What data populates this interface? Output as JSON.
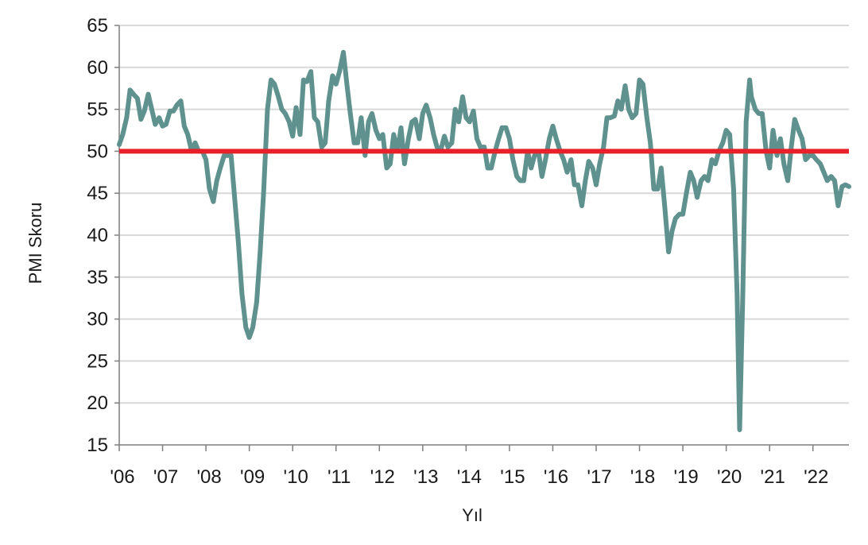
{
  "chart_data": {
    "type": "line",
    "title": "",
    "xlabel": "Yıl",
    "ylabel": "PMI Skoru",
    "ylim": [
      15,
      65
    ],
    "yticks": [
      15,
      20,
      25,
      30,
      35,
      40,
      45,
      50,
      55,
      60,
      65
    ],
    "xlim": [
      2006.0,
      2022.83
    ],
    "xticks": [
      {
        "value": 2006,
        "label": "'06"
      },
      {
        "value": 2007,
        "label": "'07"
      },
      {
        "value": 2008,
        "label": "'08"
      },
      {
        "value": 2009,
        "label": "'09"
      },
      {
        "value": 2010,
        "label": "'10"
      },
      {
        "value": 2011,
        "label": "'11"
      },
      {
        "value": 2012,
        "label": "'12"
      },
      {
        "value": 2013,
        "label": "'13"
      },
      {
        "value": 2014,
        "label": "'14"
      },
      {
        "value": 2015,
        "label": "'15"
      },
      {
        "value": 2016,
        "label": "'16"
      },
      {
        "value": 2017,
        "label": "'17"
      },
      {
        "value": 2018,
        "label": "'18"
      },
      {
        "value": 2019,
        "label": "'19"
      },
      {
        "value": 2020,
        "label": "'20"
      },
      {
        "value": 2021,
        "label": "'21"
      },
      {
        "value": 2022,
        "label": "'22"
      }
    ],
    "grid": true,
    "legend": false,
    "reference_line": {
      "value": 50,
      "color": "#e8202a"
    },
    "series": [
      {
        "color": "#5f928e",
        "points": [
          [
            2006.0,
            50.8
          ],
          [
            2006.08,
            52.0
          ],
          [
            2006.17,
            54.0
          ],
          [
            2006.25,
            57.3
          ],
          [
            2006.33,
            56.8
          ],
          [
            2006.42,
            56.3
          ],
          [
            2006.5,
            53.8
          ],
          [
            2006.58,
            54.8
          ],
          [
            2006.67,
            56.8
          ],
          [
            2006.75,
            55.0
          ],
          [
            2006.83,
            53.2
          ],
          [
            2006.92,
            54.0
          ],
          [
            2007.0,
            53.0
          ],
          [
            2007.08,
            53.2
          ],
          [
            2007.17,
            54.8
          ],
          [
            2007.25,
            54.8
          ],
          [
            2007.33,
            55.5
          ],
          [
            2007.42,
            56.0
          ],
          [
            2007.5,
            53.0
          ],
          [
            2007.58,
            52.0
          ],
          [
            2007.67,
            50.0
          ],
          [
            2007.75,
            51.0
          ],
          [
            2007.83,
            50.0
          ],
          [
            2007.92,
            50.0
          ],
          [
            2008.0,
            49.0
          ],
          [
            2008.08,
            45.5
          ],
          [
            2008.17,
            44.0
          ],
          [
            2008.25,
            46.5
          ],
          [
            2008.33,
            48.0
          ],
          [
            2008.42,
            49.5
          ],
          [
            2008.5,
            49.5
          ],
          [
            2008.58,
            49.5
          ],
          [
            2008.67,
            44.0
          ],
          [
            2008.75,
            39.0
          ],
          [
            2008.83,
            33.0
          ],
          [
            2008.92,
            29.0
          ],
          [
            2009.0,
            27.8
          ],
          [
            2009.08,
            29.0
          ],
          [
            2009.17,
            32.0
          ],
          [
            2009.25,
            38.0
          ],
          [
            2009.33,
            45.0
          ],
          [
            2009.42,
            55.0
          ],
          [
            2009.5,
            58.5
          ],
          [
            2009.58,
            58.0
          ],
          [
            2009.67,
            56.5
          ],
          [
            2009.75,
            55.0
          ],
          [
            2009.83,
            54.5
          ],
          [
            2009.92,
            53.5
          ],
          [
            2010.0,
            51.8
          ],
          [
            2010.08,
            55.2
          ],
          [
            2010.17,
            52.0
          ],
          [
            2010.25,
            58.5
          ],
          [
            2010.33,
            58.3
          ],
          [
            2010.42,
            59.5
          ],
          [
            2010.5,
            54.0
          ],
          [
            2010.58,
            53.5
          ],
          [
            2010.67,
            50.5
          ],
          [
            2010.75,
            51.0
          ],
          [
            2010.83,
            56.0
          ],
          [
            2010.92,
            59.0
          ],
          [
            2011.0,
            58.0
          ],
          [
            2011.08,
            59.5
          ],
          [
            2011.17,
            61.8
          ],
          [
            2011.25,
            58.0
          ],
          [
            2011.33,
            54.5
          ],
          [
            2011.42,
            51.0
          ],
          [
            2011.5,
            51.0
          ],
          [
            2011.58,
            54.0
          ],
          [
            2011.67,
            49.5
          ],
          [
            2011.75,
            53.5
          ],
          [
            2011.83,
            54.5
          ],
          [
            2011.92,
            52.5
          ],
          [
            2012.0,
            51.5
          ],
          [
            2012.08,
            52.0
          ],
          [
            2012.17,
            48.0
          ],
          [
            2012.25,
            48.5
          ],
          [
            2012.33,
            52.0
          ],
          [
            2012.42,
            50.0
          ],
          [
            2012.5,
            52.8
          ],
          [
            2012.58,
            48.5
          ],
          [
            2012.67,
            51.5
          ],
          [
            2012.75,
            53.5
          ],
          [
            2012.83,
            53.8
          ],
          [
            2012.92,
            51.5
          ],
          [
            2013.0,
            54.5
          ],
          [
            2013.08,
            55.5
          ],
          [
            2013.17,
            54.0
          ],
          [
            2013.25,
            52.0
          ],
          [
            2013.33,
            50.5
          ],
          [
            2013.42,
            50.2
          ],
          [
            2013.5,
            51.8
          ],
          [
            2013.58,
            50.5
          ],
          [
            2013.67,
            51.0
          ],
          [
            2013.75,
            55.0
          ],
          [
            2013.83,
            53.5
          ],
          [
            2013.92,
            56.5
          ],
          [
            2014.0,
            54.0
          ],
          [
            2014.08,
            53.5
          ],
          [
            2014.17,
            54.8
          ],
          [
            2014.25,
            51.5
          ],
          [
            2014.33,
            50.5
          ],
          [
            2014.42,
            50.5
          ],
          [
            2014.5,
            48.0
          ],
          [
            2014.58,
            48.0
          ],
          [
            2014.67,
            50.0
          ],
          [
            2014.75,
            51.5
          ],
          [
            2014.83,
            52.8
          ],
          [
            2014.92,
            52.8
          ],
          [
            2015.0,
            51.5
          ],
          [
            2015.08,
            49.0
          ],
          [
            2015.17,
            47.0
          ],
          [
            2015.25,
            46.5
          ],
          [
            2015.33,
            46.5
          ],
          [
            2015.42,
            50.0
          ],
          [
            2015.5,
            48.0
          ],
          [
            2015.58,
            49.5
          ],
          [
            2015.67,
            50.0
          ],
          [
            2015.75,
            47.0
          ],
          [
            2015.83,
            49.0
          ],
          [
            2015.92,
            51.5
          ],
          [
            2016.0,
            53.0
          ],
          [
            2016.08,
            51.5
          ],
          [
            2016.17,
            50.0
          ],
          [
            2016.25,
            49.0
          ],
          [
            2016.33,
            47.5
          ],
          [
            2016.42,
            49.0
          ],
          [
            2016.5,
            46.0
          ],
          [
            2016.58,
            46.0
          ],
          [
            2016.67,
            43.5
          ],
          [
            2016.75,
            46.5
          ],
          [
            2016.83,
            48.8
          ],
          [
            2016.92,
            48.0
          ],
          [
            2017.0,
            46.0
          ],
          [
            2017.08,
            48.5
          ],
          [
            2017.17,
            50.5
          ],
          [
            2017.25,
            54.0
          ],
          [
            2017.33,
            54.0
          ],
          [
            2017.42,
            54.2
          ],
          [
            2017.5,
            56.0
          ],
          [
            2017.58,
            55.0
          ],
          [
            2017.67,
            57.8
          ],
          [
            2017.75,
            55.0
          ],
          [
            2017.83,
            54.0
          ],
          [
            2017.92,
            54.5
          ],
          [
            2018.0,
            58.5
          ],
          [
            2018.08,
            58.0
          ],
          [
            2018.17,
            54.0
          ],
          [
            2018.25,
            51.0
          ],
          [
            2018.33,
            45.5
          ],
          [
            2018.42,
            45.5
          ],
          [
            2018.5,
            48.0
          ],
          [
            2018.58,
            43.5
          ],
          [
            2018.67,
            38.0
          ],
          [
            2018.75,
            40.5
          ],
          [
            2018.83,
            42.0
          ],
          [
            2018.92,
            42.5
          ],
          [
            2019.0,
            42.5
          ],
          [
            2019.08,
            45.0
          ],
          [
            2019.17,
            47.5
          ],
          [
            2019.25,
            46.5
          ],
          [
            2019.33,
            44.5
          ],
          [
            2019.42,
            46.5
          ],
          [
            2019.5,
            47.0
          ],
          [
            2019.58,
            46.5
          ],
          [
            2019.67,
            49.0
          ],
          [
            2019.75,
            48.5
          ],
          [
            2019.83,
            50.0
          ],
          [
            2019.92,
            51.0
          ],
          [
            2020.0,
            52.5
          ],
          [
            2020.08,
            52.0
          ],
          [
            2020.17,
            45.5
          ],
          [
            2020.25,
            33.0
          ],
          [
            2020.31,
            16.8
          ],
          [
            2020.38,
            32.5
          ],
          [
            2020.46,
            53.5
          ],
          [
            2020.54,
            58.5
          ],
          [
            2020.58,
            56.5
          ],
          [
            2020.67,
            55.0
          ],
          [
            2020.75,
            54.5
          ],
          [
            2020.83,
            54.5
          ],
          [
            2020.92,
            50.0
          ],
          [
            2021.0,
            48.0
          ],
          [
            2021.08,
            52.5
          ],
          [
            2021.17,
            49.5
          ],
          [
            2021.25,
            51.5
          ],
          [
            2021.33,
            48.5
          ],
          [
            2021.42,
            46.5
          ],
          [
            2021.5,
            50.5
          ],
          [
            2021.58,
            53.8
          ],
          [
            2021.67,
            52.5
          ],
          [
            2021.75,
            51.5
          ],
          [
            2021.83,
            49.0
          ],
          [
            2021.92,
            49.5
          ],
          [
            2022.0,
            49.5
          ],
          [
            2022.08,
            49.0
          ],
          [
            2022.17,
            48.5
          ],
          [
            2022.25,
            47.5
          ],
          [
            2022.33,
            46.5
          ],
          [
            2022.42,
            47.0
          ],
          [
            2022.5,
            46.5
          ],
          [
            2022.58,
            43.5
          ],
          [
            2022.67,
            45.8
          ],
          [
            2022.75,
            46.0
          ],
          [
            2022.83,
            45.8
          ]
        ]
      }
    ]
  }
}
